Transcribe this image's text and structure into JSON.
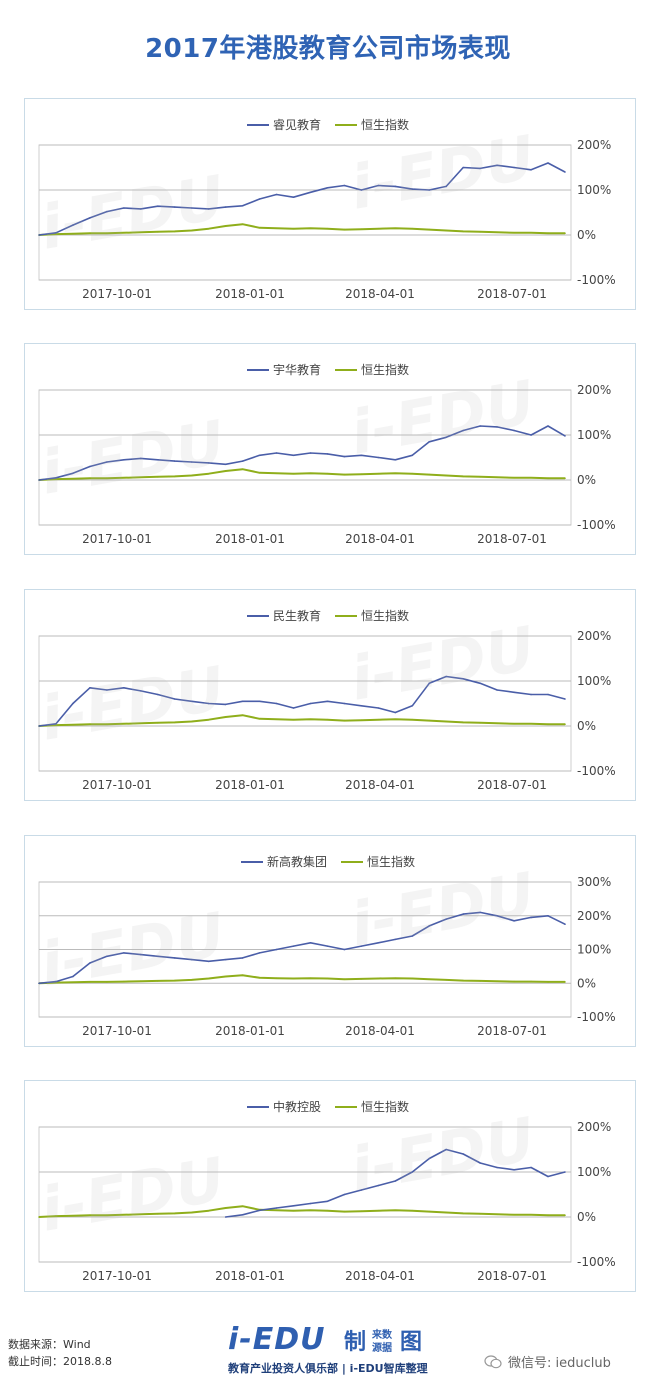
{
  "title": "2017年港股教育公司市场表现",
  "footer": {
    "source": "数据来源：Wind",
    "cutoff": "截止时间：2018.8.8",
    "brand_main": "i-EDU",
    "brand_badge_1": "制",
    "brand_badge_2": "来数",
    "brand_badge_3": "源据",
    "brand_badge_4": "图",
    "brand_sub": "教育产业投资人俱乐部 | i-EDU智库整理",
    "wechat": "微信号: ieduclub"
  },
  "watermark_text": "i-EDU",
  "watermark_sub": "教育产业投资人俱乐部",
  "colors": {
    "company": "#4a5ea8",
    "hsi": "#8fae1b",
    "grid": "#bbbbbb",
    "title": "#2f63b4"
  },
  "chart_data": [
    {
      "type": "line",
      "x_ticks": [
        "2017-10-01",
        "2018-01-01",
        "2018-04-01",
        "2018-07-01"
      ],
      "y_ticks": [
        "200%",
        "100%",
        "0%",
        "-100%"
      ],
      "ylim": [
        -100,
        200
      ],
      "legend": "top-center",
      "series": [
        {
          "name": "睿见教育",
          "values": [
            0,
            5,
            22,
            38,
            52,
            60,
            58,
            64,
            62,
            60,
            58,
            62,
            65,
            80,
            90,
            84,
            95,
            105,
            110,
            100,
            110,
            108,
            102,
            100,
            108,
            150,
            148,
            155,
            150,
            145,
            160,
            140
          ]
        },
        {
          "name": "恒生指数",
          "values": [
            0,
            2,
            3,
            4,
            4,
            5,
            6,
            7,
            8,
            10,
            14,
            20,
            24,
            16,
            15,
            14,
            15,
            14,
            12,
            13,
            14,
            15,
            14,
            12,
            10,
            8,
            7,
            6,
            5,
            5,
            4,
            4
          ]
        }
      ]
    },
    {
      "type": "line",
      "x_ticks": [
        "2017-10-01",
        "2018-01-01",
        "2018-04-01",
        "2018-07-01"
      ],
      "y_ticks": [
        "200%",
        "100%",
        "0%",
        "-100%"
      ],
      "ylim": [
        -100,
        200
      ],
      "legend": "top-center",
      "series": [
        {
          "name": "宇华教育",
          "values": [
            0,
            5,
            15,
            30,
            40,
            45,
            48,
            45,
            42,
            40,
            38,
            35,
            42,
            55,
            60,
            55,
            60,
            58,
            52,
            55,
            50,
            45,
            55,
            85,
            95,
            110,
            120,
            118,
            110,
            100,
            120,
            98
          ]
        },
        {
          "name": "恒生指数",
          "values": [
            0,
            2,
            3,
            4,
            4,
            5,
            6,
            7,
            8,
            10,
            14,
            20,
            24,
            16,
            15,
            14,
            15,
            14,
            12,
            13,
            14,
            15,
            14,
            12,
            10,
            8,
            7,
            6,
            5,
            5,
            4,
            4
          ]
        }
      ]
    },
    {
      "type": "line",
      "x_ticks": [
        "2017-10-01",
        "2018-01-01",
        "2018-04-01",
        "2018-07-01"
      ],
      "y_ticks": [
        "200%",
        "100%",
        "0%",
        "-100%"
      ],
      "ylim": [
        -100,
        200
      ],
      "legend": "top-center",
      "series": [
        {
          "name": "民生教育",
          "values": [
            0,
            5,
            50,
            85,
            80,
            85,
            78,
            70,
            60,
            55,
            50,
            48,
            55,
            55,
            50,
            40,
            50,
            55,
            50,
            45,
            40,
            30,
            45,
            95,
            110,
            105,
            95,
            80,
            75,
            70,
            70,
            60
          ]
        },
        {
          "name": "恒生指数",
          "values": [
            0,
            2,
            3,
            4,
            4,
            5,
            6,
            7,
            8,
            10,
            14,
            20,
            24,
            16,
            15,
            14,
            15,
            14,
            12,
            13,
            14,
            15,
            14,
            12,
            10,
            8,
            7,
            6,
            5,
            5,
            4,
            4
          ]
        }
      ]
    },
    {
      "type": "line",
      "x_ticks": [
        "2017-10-01",
        "2018-01-01",
        "2018-04-01",
        "2018-07-01"
      ],
      "y_ticks": [
        "300%",
        "200%",
        "100%",
        "0%",
        "-100%"
      ],
      "ylim": [
        -100,
        300
      ],
      "legend": "top-center",
      "series": [
        {
          "name": "新高教集团",
          "values": [
            0,
            5,
            20,
            60,
            80,
            90,
            85,
            80,
            75,
            70,
            65,
            70,
            75,
            90,
            100,
            110,
            120,
            110,
            100,
            110,
            120,
            130,
            140,
            170,
            190,
            205,
            210,
            200,
            185,
            195,
            200,
            175
          ]
        },
        {
          "name": "恒生指数",
          "values": [
            0,
            2,
            3,
            4,
            4,
            5,
            6,
            7,
            8,
            10,
            14,
            20,
            24,
            16,
            15,
            14,
            15,
            14,
            12,
            13,
            14,
            15,
            14,
            12,
            10,
            8,
            7,
            6,
            5,
            5,
            4,
            4
          ]
        }
      ]
    },
    {
      "type": "line",
      "x_ticks": [
        "2017-10-01",
        "2018-01-01",
        "2018-04-01",
        "2018-07-01"
      ],
      "y_ticks": [
        "200%",
        "100%",
        "0%",
        "-100%"
      ],
      "ylim": [
        -100,
        200
      ],
      "legend": "top-center",
      "series": [
        {
          "name": "中教控股",
          "start_index": 11,
          "values": [
            null,
            null,
            null,
            null,
            null,
            null,
            null,
            null,
            null,
            null,
            null,
            0,
            5,
            15,
            20,
            25,
            30,
            35,
            50,
            60,
            70,
            80,
            100,
            130,
            150,
            140,
            120,
            110,
            105,
            110,
            90,
            100
          ]
        },
        {
          "name": "恒生指数",
          "values": [
            0,
            2,
            3,
            4,
            4,
            5,
            6,
            7,
            8,
            10,
            14,
            20,
            24,
            16,
            15,
            14,
            15,
            14,
            12,
            13,
            14,
            15,
            14,
            12,
            10,
            8,
            7,
            6,
            5,
            5,
            4,
            4
          ]
        }
      ]
    }
  ]
}
